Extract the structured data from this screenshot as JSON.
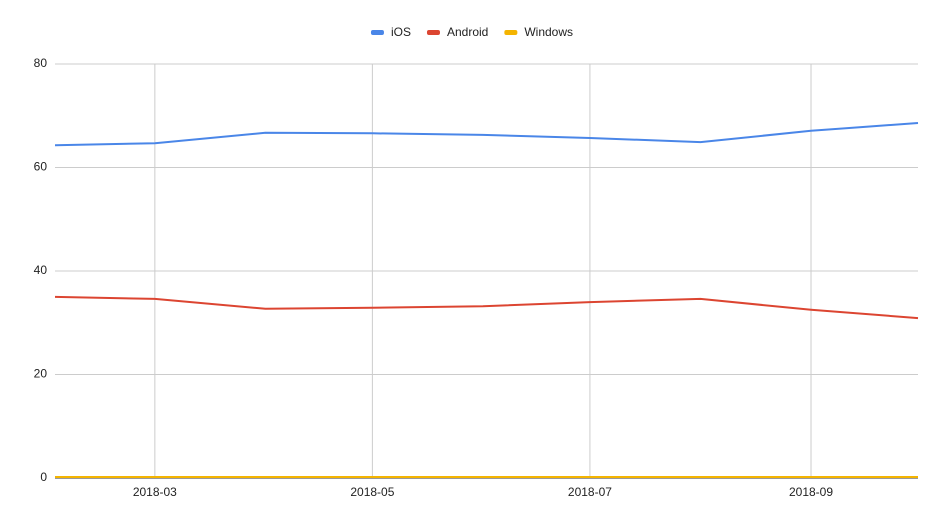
{
  "chart_data": {
    "type": "line",
    "x": [
      "2018-02",
      "2018-03",
      "2018-04",
      "2018-05",
      "2018-06",
      "2018-07",
      "2018-08",
      "2018-09",
      "2018-10"
    ],
    "series": [
      {
        "name": "iOS",
        "color": "#4a86e8",
        "values": [
          64.3,
          64.7,
          66.7,
          66.6,
          66.3,
          65.7,
          64.9,
          67.1,
          68.6
        ]
      },
      {
        "name": "Android",
        "color": "#dc4531",
        "values": [
          35.0,
          34.6,
          32.7,
          32.9,
          33.2,
          34.0,
          34.6,
          32.5,
          30.9
        ]
      },
      {
        "name": "Windows",
        "color": "#f4b400",
        "values": [
          0.2,
          0.2,
          0.2,
          0.2,
          0.2,
          0.2,
          0.2,
          0.2,
          0.2
        ]
      }
    ],
    "xlim": [
      "2018-02",
      "2018-10"
    ],
    "xticks": [
      "2018-03",
      "2018-05",
      "2018-07",
      "2018-09"
    ],
    "ylim": [
      0,
      80
    ],
    "yticks": [
      0,
      20,
      40,
      60,
      80
    ],
    "grid": true,
    "legend": "top"
  }
}
